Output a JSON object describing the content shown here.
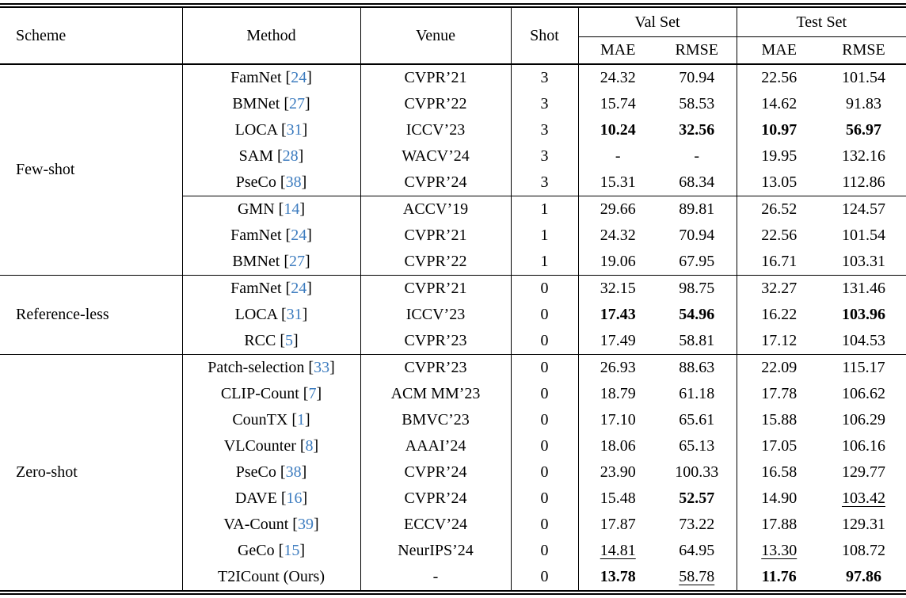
{
  "table": {
    "citation_color": "#3d7cbf",
    "header": {
      "scheme": "Scheme",
      "method": "Method",
      "venue": "Venue",
      "shot": "Shot",
      "val_set": "Val Set",
      "test_set": "Test Set",
      "mae": "MAE",
      "rmse": "RMSE"
    },
    "groups": [
      {
        "scheme": "Few-shot",
        "rows": [
          {
            "method": "FamNet",
            "cite": "24",
            "venue": "CVPR’21",
            "shot": "3",
            "vals": [
              {
                "t": "24.32"
              },
              {
                "t": "70.94"
              },
              {
                "t": "22.56"
              },
              {
                "t": "101.54"
              }
            ]
          },
          {
            "method": "BMNet",
            "cite": "27",
            "venue": "CVPR’22",
            "shot": "3",
            "vals": [
              {
                "t": "15.74"
              },
              {
                "t": "58.53"
              },
              {
                "t": "14.62"
              },
              {
                "t": "91.83"
              }
            ]
          },
          {
            "method": "LOCA",
            "cite": "31",
            "venue": "ICCV’23",
            "shot": "3",
            "vals": [
              {
                "t": "10.24",
                "b": true
              },
              {
                "t": "32.56",
                "b": true
              },
              {
                "t": "10.97",
                "b": true
              },
              {
                "t": "56.97",
                "b": true
              }
            ]
          },
          {
            "method": "SAM",
            "cite": "28",
            "venue": "WACV’24",
            "shot": "3",
            "vals": [
              {
                "t": "-"
              },
              {
                "t": "-"
              },
              {
                "t": "19.95"
              },
              {
                "t": "132.16"
              }
            ]
          },
          {
            "method": "PseCo",
            "cite": "38",
            "venue": "CVPR’24",
            "shot": "3",
            "vals": [
              {
                "t": "15.31"
              },
              {
                "t": "68.34"
              },
              {
                "t": "13.05"
              },
              {
                "t": "112.86"
              }
            ]
          },
          {
            "method": "GMN",
            "cite": "14",
            "venue": "ACCV’19",
            "shot": "1",
            "cline": true,
            "vals": [
              {
                "t": "29.66"
              },
              {
                "t": "89.81"
              },
              {
                "t": "26.52"
              },
              {
                "t": "124.57"
              }
            ]
          },
          {
            "method": "FamNet",
            "cite": "24",
            "venue": "CVPR’21",
            "shot": "1",
            "vals": [
              {
                "t": "24.32"
              },
              {
                "t": "70.94"
              },
              {
                "t": "22.56"
              },
              {
                "t": "101.54"
              }
            ]
          },
          {
            "method": "BMNet",
            "cite": "27",
            "venue": "CVPR’22",
            "shot": "1",
            "vals": [
              {
                "t": "19.06"
              },
              {
                "t": "67.95"
              },
              {
                "t": "16.71"
              },
              {
                "t": "103.31"
              }
            ]
          }
        ]
      },
      {
        "scheme": "Reference-less",
        "rows": [
          {
            "method": "FamNet",
            "cite": "24",
            "venue": "CVPR’21",
            "shot": "0",
            "vals": [
              {
                "t": "32.15"
              },
              {
                "t": "98.75"
              },
              {
                "t": "32.27"
              },
              {
                "t": "131.46"
              }
            ]
          },
          {
            "method": "LOCA",
            "cite": "31",
            "venue": "ICCV’23",
            "shot": "0",
            "vals": [
              {
                "t": "17.43",
                "b": true
              },
              {
                "t": "54.96",
                "b": true
              },
              {
                "t": "16.22"
              },
              {
                "t": "103.96",
                "b": true
              }
            ]
          },
          {
            "method": "RCC",
            "cite": "5",
            "venue": "CVPR’23",
            "shot": "0",
            "vals": [
              {
                "t": "17.49"
              },
              {
                "t": "58.81"
              },
              {
                "t": "17.12"
              },
              {
                "t": "104.53"
              }
            ]
          }
        ]
      },
      {
        "scheme": "Zero-shot",
        "rows": [
          {
            "method": "Patch-selection",
            "cite": "33",
            "venue": "CVPR’23",
            "shot": "0",
            "vals": [
              {
                "t": "26.93"
              },
              {
                "t": "88.63"
              },
              {
                "t": "22.09"
              },
              {
                "t": "115.17"
              }
            ]
          },
          {
            "method": "CLIP-Count",
            "cite": "7",
            "venue": "ACM MM’23",
            "shot": "0",
            "vals": [
              {
                "t": "18.79"
              },
              {
                "t": "61.18"
              },
              {
                "t": "17.78"
              },
              {
                "t": "106.62"
              }
            ]
          },
          {
            "method": "CounTX",
            "cite": "1",
            "venue": "BMVC’23",
            "shot": "0",
            "vals": [
              {
                "t": "17.10"
              },
              {
                "t": "65.61"
              },
              {
                "t": "15.88"
              },
              {
                "t": "106.29"
              }
            ]
          },
          {
            "method": "VLCounter",
            "cite": "8",
            "venue": "AAAI’24",
            "shot": "0",
            "vals": [
              {
                "t": "18.06"
              },
              {
                "t": "65.13"
              },
              {
                "t": "17.05"
              },
              {
                "t": "106.16"
              }
            ]
          },
          {
            "method": "PseCo",
            "cite": "38",
            "venue": "CVPR’24",
            "shot": "0",
            "vals": [
              {
                "t": "23.90"
              },
              {
                "t": "100.33"
              },
              {
                "t": "16.58"
              },
              {
                "t": "129.77"
              }
            ]
          },
          {
            "method": "DAVE",
            "cite": "16",
            "venue": "CVPR’24",
            "shot": "0",
            "vals": [
              {
                "t": "15.48"
              },
              {
                "t": "52.57",
                "b": true
              },
              {
                "t": "14.90"
              },
              {
                "t": "103.42",
                "u": true
              }
            ]
          },
          {
            "method": "VA-Count",
            "cite": "39",
            "venue": "ECCV’24",
            "shot": "0",
            "vals": [
              {
                "t": "17.87"
              },
              {
                "t": "73.22"
              },
              {
                "t": "17.88"
              },
              {
                "t": "129.31"
              }
            ]
          },
          {
            "method": "GeCo",
            "cite": "15",
            "venue": "NeurIPS’24",
            "shot": "0",
            "vals": [
              {
                "t": "14.81",
                "u": true
              },
              {
                "t": "64.95"
              },
              {
                "t": "13.30",
                "u": true
              },
              {
                "t": "108.72"
              }
            ]
          },
          {
            "method": "T2ICount (Ours)",
            "cite": null,
            "venue": "-",
            "shot": "0",
            "vals": [
              {
                "t": "13.78",
                "b": true
              },
              {
                "t": "58.78",
                "u": true
              },
              {
                "t": "11.76",
                "b": true
              },
              {
                "t": "97.86",
                "b": true
              }
            ]
          }
        ]
      }
    ]
  }
}
